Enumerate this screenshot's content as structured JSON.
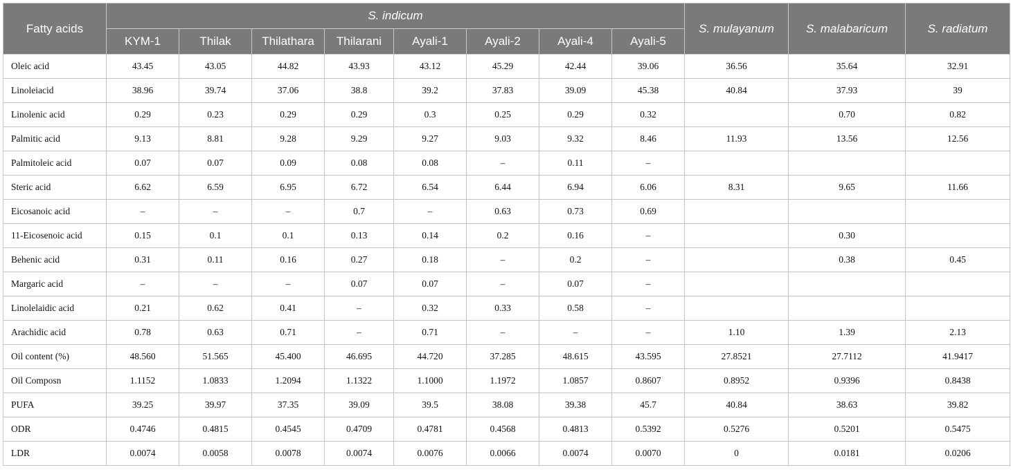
{
  "table": {
    "header": {
      "fatty_acids": "Fatty acids",
      "s_indicum": "S. indicum",
      "s_mulayanum": "S. mulayanum",
      "s_malabaricum": "S. malabaricum",
      "s_radiatum": "S. radiatum",
      "varieties": [
        "KYM-1",
        "Thilak",
        "Thilathara",
        "Thilarani",
        "Ayali-1",
        "Ayali-2",
        "Ayali-4",
        "Ayali-5"
      ]
    },
    "rows": [
      {
        "label": "Oleic acid",
        "cells": [
          "43.45",
          "43.05",
          "44.82",
          "43.93",
          "43.12",
          "45.29",
          "42.44",
          "39.06",
          "36.56",
          "35.64",
          "32.91"
        ]
      },
      {
        "label": "Linoleiacid",
        "cells": [
          "38.96",
          "39.74",
          "37.06",
          "38.8",
          "39.2",
          "37.83",
          "39.09",
          "45.38",
          "40.84",
          "37.93",
          "39"
        ]
      },
      {
        "label": "Linolenic acid",
        "cells": [
          "0.29",
          "0.23",
          "0.29",
          "0.29",
          "0.3",
          "0.25",
          "0.29",
          "0.32",
          "",
          "0.70",
          "0.82"
        ]
      },
      {
        "label": "Palmitic acid",
        "cells": [
          "9.13",
          "8.81",
          "9.28",
          "9.29",
          "9.27",
          "9.03",
          "9.32",
          "8.46",
          "11.93",
          "13.56",
          "12.56"
        ]
      },
      {
        "label": "Palmitoleic acid",
        "cells": [
          "0.07",
          "0.07",
          "0.09",
          "0.08",
          "0.08",
          "–",
          "0.11",
          "–",
          "",
          "",
          ""
        ]
      },
      {
        "label": "Steric acid",
        "cells": [
          "6.62",
          "6.59",
          "6.95",
          "6.72",
          "6.54",
          "6.44",
          "6.94",
          "6.06",
          "8.31",
          "9.65",
          "11.66"
        ]
      },
      {
        "label": "Eicosanoic acid",
        "cells": [
          "–",
          "–",
          "–",
          "0.7",
          "–",
          "0.63",
          "0.73",
          "0.69",
          "",
          "",
          ""
        ]
      },
      {
        "label": "11-Eicosenoic acid",
        "cells": [
          "0.15",
          "0.1",
          "0.1",
          "0.13",
          "0.14",
          "0.2",
          "0.16",
          "–",
          "",
          "0.30",
          ""
        ]
      },
      {
        "label": "Behenic acid",
        "cells": [
          "0.31",
          "0.11",
          "0.16",
          "0.27",
          "0.18",
          "–",
          "0.2",
          "–",
          "",
          "0.38",
          "0.45"
        ]
      },
      {
        "label": "Margaric acid",
        "cells": [
          "–",
          "–",
          "–",
          "0.07",
          "0.07",
          "–",
          "0.07",
          "–",
          "",
          "",
          ""
        ]
      },
      {
        "label": "Linolelaidic acid",
        "cells": [
          "0.21",
          "0.62",
          "0.41",
          "–",
          "0.32",
          "0.33",
          "0.58",
          "–",
          "",
          "",
          ""
        ]
      },
      {
        "label": "Arachidic acid",
        "cells": [
          "0.78",
          "0.63",
          "0.71",
          "–",
          "0.71",
          "–",
          "–",
          "–",
          "1.10",
          "1.39",
          "2.13"
        ]
      },
      {
        "label": "Oil content (%)",
        "cells": [
          "48.560",
          "51.565",
          "45.400",
          "46.695",
          "44.720",
          "37.285",
          "48.615",
          "43.595",
          "27.8521",
          "27.7112",
          "41.9417"
        ]
      },
      {
        "label": "Oil Composn",
        "cells": [
          "1.1152",
          "1.0833",
          "1.2094",
          "1.1322",
          "1.1000",
          "1.1972",
          "1.0857",
          "0.8607",
          "0.8952",
          "0.9396",
          "0.8438"
        ]
      },
      {
        "label": "PUFA",
        "cells": [
          "39.25",
          "39.97",
          "37.35",
          "39.09",
          "39.5",
          "38.08",
          "39.38",
          "45.7",
          "40.84",
          "38.63",
          "39.82"
        ]
      },
      {
        "label": "ODR",
        "cells": [
          "0.4746",
          "0.4815",
          "0.4545",
          "0.4709",
          "0.4781",
          "0.4568",
          "0.4813",
          "0.5392",
          "0.5276",
          "0.5201",
          "0.5475"
        ]
      },
      {
        "label": "LDR",
        "cells": [
          "0.0074",
          "0.0058",
          "0.0078",
          "0.0074",
          "0.0076",
          "0.0066",
          "0.0074",
          "0.0070",
          "0",
          "0.0181",
          "0.0206"
        ]
      }
    ]
  }
}
